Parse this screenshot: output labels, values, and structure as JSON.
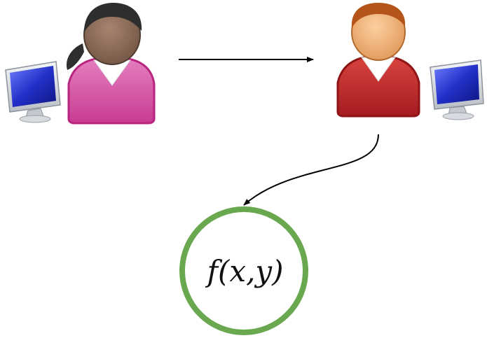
{
  "diagram": {
    "function_label": "f(x,y)",
    "colors": {
      "left_person_shirt": "#d65aa6",
      "left_person_shirt_dark": "#b8247f",
      "right_person_shirt": "#c0282c",
      "right_person_shirt_dark": "#8e1417",
      "skin_dark": "#8a6a58",
      "skin_light": "#f0b27a",
      "hair_dark": "#2e2e2e",
      "hair_brown": "#b5541a",
      "monitor_screen": "#2230c8",
      "monitor_frame": "#d9dde2",
      "circle_stroke": "#6aa84f",
      "arrow": "#000000"
    },
    "icons": {
      "left_person": "person-female-icon",
      "right_person": "person-male-icon",
      "left_monitor": "monitor-icon",
      "right_monitor": "monitor-icon"
    }
  }
}
